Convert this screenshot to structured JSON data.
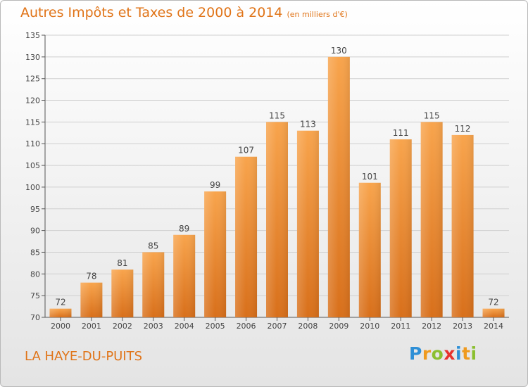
{
  "title": "Autres Impôts et Taxes de 2000 à 2014",
  "unit": "(en milliers d'€)",
  "commune": "LA HAYE-DU-PUITS",
  "logo": {
    "letters": [
      "P",
      "r",
      "o",
      "x",
      "i",
      "t",
      "i"
    ],
    "colors": [
      "#2e8fd6",
      "#ef9a1e",
      "#8bbf2f",
      "#e8322e",
      "#2e8fd6",
      "#ef9a1e",
      "#8bbf2f"
    ]
  },
  "colors": {
    "bar": "#f59a3a",
    "accent": "#e07418",
    "grid": "#cfcfcf"
  },
  "chart_data": {
    "type": "bar",
    "categories": [
      "2000",
      "2001",
      "2002",
      "2003",
      "2004",
      "2005",
      "2006",
      "2007",
      "2008",
      "2009",
      "2010",
      "2011",
      "2012",
      "2013",
      "2014"
    ],
    "values": [
      72,
      78,
      81,
      85,
      89,
      99,
      107,
      115,
      113,
      130,
      101,
      111,
      115,
      112,
      72
    ],
    "ylim": [
      70,
      135
    ],
    "yticks": [
      70,
      75,
      80,
      85,
      90,
      95,
      100,
      105,
      110,
      115,
      120,
      125,
      130,
      135
    ],
    "grid": true,
    "data_labels": true
  }
}
